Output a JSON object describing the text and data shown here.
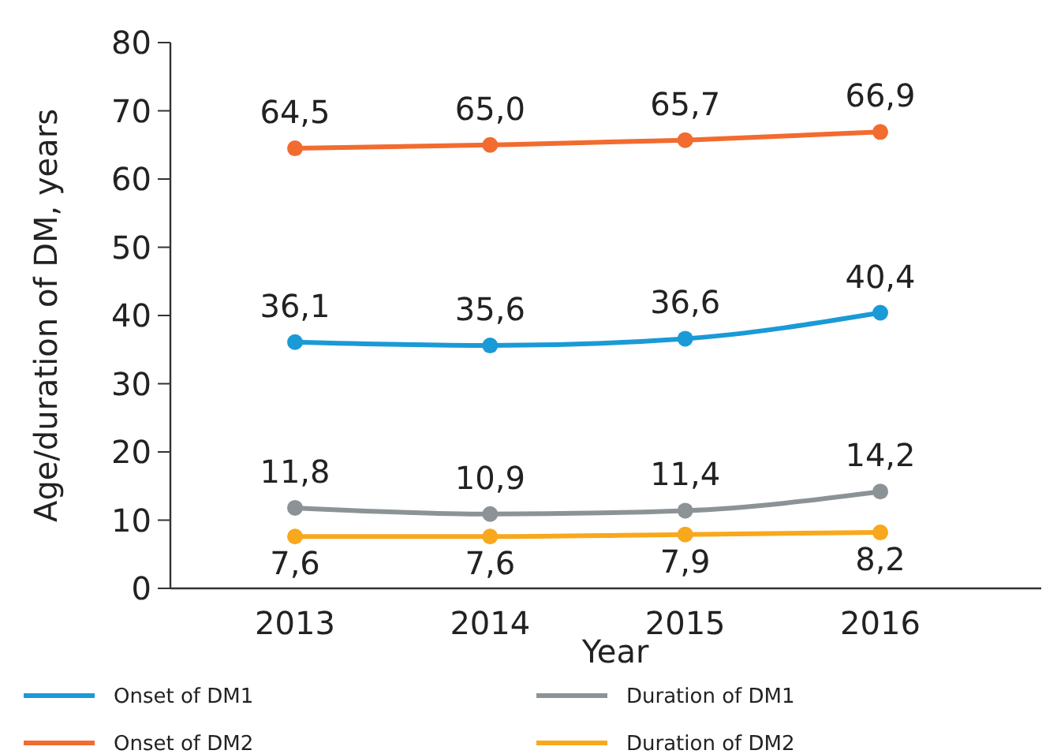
{
  "chart_data": {
    "type": "line",
    "xlabel": "Year",
    "ylabel": "Age/duration of DM, years",
    "categories": [
      "2013",
      "2014",
      "2015",
      "2016"
    ],
    "series": [
      {
        "name": "Onset of DM1",
        "color": "#1a9ad6",
        "values": [
          36.1,
          35.6,
          36.6,
          40.4
        ],
        "value_labels": [
          "36,1",
          "35,6",
          "36,6",
          "40,4"
        ]
      },
      {
        "name": "Duration of DM1",
        "color": "#8c9396",
        "values": [
          11.8,
          10.9,
          11.4,
          14.2
        ],
        "value_labels": [
          "11,8",
          "10,9",
          "11,4",
          "14,2"
        ]
      },
      {
        "name": "Onset of DM2",
        "color": "#f26b2f",
        "values": [
          64.5,
          65.0,
          65.7,
          66.9
        ],
        "value_labels": [
          "64,5",
          "65,0",
          "65,7",
          "66,9"
        ]
      },
      {
        "name": "Duration of DM2",
        "color": "#f8a81c",
        "values": [
          7.6,
          7.6,
          7.9,
          8.2
        ],
        "value_labels": [
          "7,6",
          "7,6",
          "7,9",
          "8,2"
        ]
      }
    ],
    "ylim": [
      0,
      80
    ],
    "yticks": [
      0,
      10,
      20,
      30,
      40,
      50,
      60,
      70,
      80
    ],
    "grid": false,
    "legend": "bottom",
    "marker": "circle",
    "line_style": "solid"
  }
}
